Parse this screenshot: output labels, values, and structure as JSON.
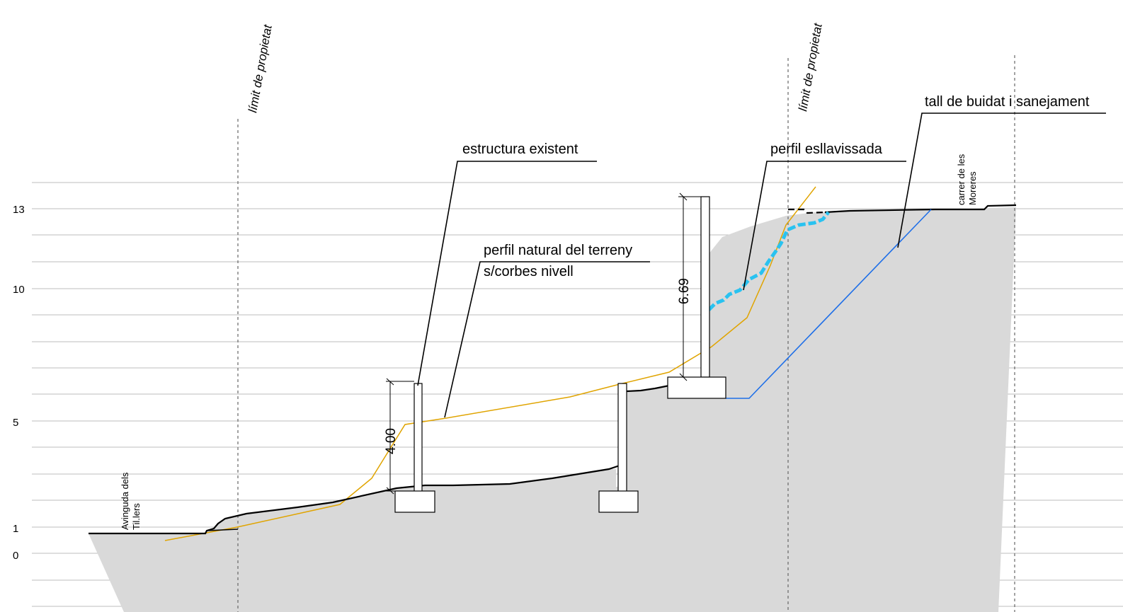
{
  "levels": {
    "l13": "13",
    "l10": "10",
    "l5": "5",
    "l1": "1",
    "l0": "0"
  },
  "labels": {
    "property_limit_left": "límit de propietat",
    "property_limit_right": "límit de propietat",
    "existing_structure": "estructura existent",
    "natural_profile_line1": "perfil natural del terreny",
    "natural_profile_line2": "s/corbes nivell",
    "landslide_profile": "perfil esllavissada",
    "excavation_cut": "tall de buidat i sanejament",
    "street_left_line1": "Avinguda dels",
    "street_left_line2": "Til.lers",
    "street_right_line1": "carrer de les",
    "street_right_line2": "Moreres"
  },
  "dimensions": {
    "wall_left_height": "4.00",
    "wall_right_height": "6.69"
  },
  "colors": {
    "terrain_fill": "#d9d9d9",
    "natural_profile": "#e0a400",
    "landslide_profile": "#29c2f0",
    "excavation_cut": "#1e6fe8",
    "gridline": "#bdbdbd"
  }
}
